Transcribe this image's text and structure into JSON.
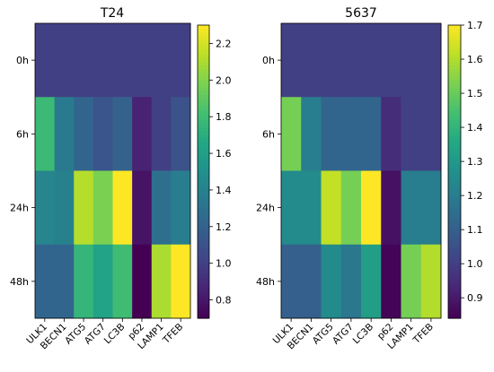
{
  "colormap": "viridis",
  "chart_data": [
    {
      "type": "heatmap",
      "title": "T24",
      "rows": [
        "0h",
        "6h",
        "24h",
        "48h"
      ],
      "columns": [
        "ULK1",
        "BECN1",
        "ATG5",
        "ATG7",
        "LC3B",
        "p62",
        "LAMP1",
        "TFEB"
      ],
      "values": [
        [
          1.0,
          1.0,
          1.0,
          1.0,
          1.0,
          1.0,
          1.0,
          1.0
        ],
        [
          1.78,
          1.35,
          1.22,
          1.12,
          1.2,
          0.85,
          1.0,
          1.1
        ],
        [
          1.42,
          1.4,
          2.12,
          1.98,
          2.3,
          0.78,
          1.28,
          1.38
        ],
        [
          1.22,
          1.22,
          1.75,
          1.62,
          1.8,
          0.7,
          2.1,
          2.3
        ]
      ],
      "vmin": 0.7,
      "vmax": 2.3,
      "colorbar_ticks": [
        "0.8",
        "1.0",
        "1.2",
        "1.4",
        "1.6",
        "1.8",
        "2.0",
        "2.2"
      ],
      "colorbar_tick_values": [
        0.8,
        1.0,
        1.2,
        1.4,
        1.6,
        1.8,
        2.0,
        2.2
      ]
    },
    {
      "type": "heatmap",
      "title": "5637",
      "rows": [
        "0h",
        "6h",
        "24h",
        "48h"
      ],
      "columns": [
        "ULK1",
        "BECN1",
        "ATG5",
        "ATG7",
        "LC3B",
        "p62",
        "LAMP1",
        "TFEB"
      ],
      "values": [
        [
          1.0,
          1.0,
          1.0,
          1.0,
          1.0,
          1.0,
          1.0,
          1.0
        ],
        [
          1.52,
          1.2,
          1.12,
          1.12,
          1.12,
          0.95,
          1.0,
          1.0
        ],
        [
          1.25,
          1.25,
          1.62,
          1.52,
          1.7,
          0.88,
          1.2,
          1.2
        ],
        [
          1.1,
          1.1,
          1.25,
          1.18,
          1.32,
          0.85,
          1.52,
          1.6
        ]
      ],
      "vmin": 0.84,
      "vmax": 1.7,
      "colorbar_ticks": [
        "0.9",
        "1.0",
        "1.1",
        "1.2",
        "1.3",
        "1.4",
        "1.5",
        "1.6",
        "1.7"
      ],
      "colorbar_tick_values": [
        0.9,
        1.0,
        1.1,
        1.2,
        1.3,
        1.4,
        1.5,
        1.6,
        1.7
      ]
    }
  ]
}
